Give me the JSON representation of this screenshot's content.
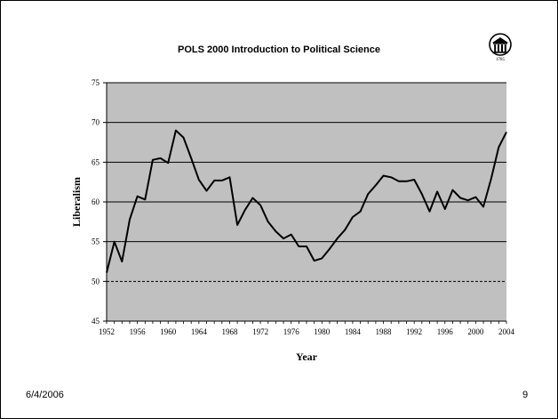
{
  "slide": {
    "title": "POLS 2000 Introduction to Political Science",
    "date": "6/4/2006",
    "page_number": "9",
    "logo_icon": "university-arch-seal-icon",
    "logo_text": "1785"
  },
  "colors": {
    "plot_background": "#c0c0c0",
    "line": "#000000",
    "gridline": "#000000"
  },
  "chart_data": {
    "type": "line",
    "title": "",
    "xlabel": "Year",
    "ylabel": "Liberalism",
    "xlim": [
      1952,
      2004
    ],
    "ylim": [
      45,
      75
    ],
    "x_ticks": [
      1952,
      1956,
      1960,
      1964,
      1968,
      1972,
      1976,
      1980,
      1984,
      1988,
      1992,
      1996,
      2000,
      2004
    ],
    "y_ticks": [
      45,
      50,
      55,
      60,
      65,
      70,
      75
    ],
    "grid": "horizontal",
    "reference_line": {
      "y": 50,
      "style": "dashed"
    },
    "legend": "none",
    "series": [
      {
        "x": [
          1952,
          1953,
          1954,
          1955,
          1956,
          1957,
          1958,
          1959,
          1960,
          1961,
          1962,
          1963,
          1964,
          1965,
          1966,
          1967,
          1968,
          1969,
          1970,
          1971,
          1972,
          1973,
          1974,
          1975,
          1976,
          1977,
          1978,
          1979,
          1980,
          1981,
          1982,
          1983,
          1984,
          1985,
          1986,
          1987,
          1988,
          1989,
          1990,
          1991,
          1992,
          1993,
          1994,
          1995,
          1996,
          1997,
          1998,
          1999,
          2000,
          2001,
          2002,
          2003,
          2004
        ],
        "y": [
          51.1,
          55.0,
          52.5,
          57.8,
          60.7,
          60.3,
          65.3,
          65.5,
          64.9,
          69.0,
          68.1,
          65.5,
          62.8,
          61.4,
          62.7,
          62.7,
          63.1,
          57.1,
          59.0,
          60.5,
          59.6,
          57.5,
          56.3,
          55.4,
          55.9,
          54.4,
          54.4,
          52.6,
          52.9,
          54.1,
          55.4,
          56.5,
          58.1,
          58.8,
          61.0,
          62.1,
          63.3,
          63.1,
          62.6,
          62.6,
          62.8,
          61.0,
          58.8,
          61.3,
          59.1,
          61.5,
          60.5,
          60.2,
          60.6,
          59.4,
          62.9,
          66.9,
          68.8
        ]
      }
    ]
  }
}
